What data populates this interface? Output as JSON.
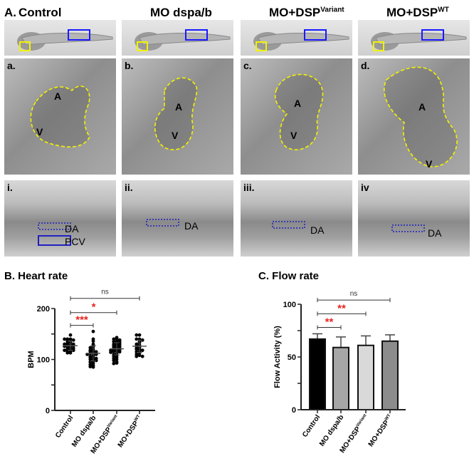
{
  "figure_label": "A.",
  "columns": [
    {
      "title": "Control",
      "sup": "",
      "heart_label": "a.",
      "vessel_label": "i.",
      "vessel_tags": [
        "DA",
        "PCV"
      ]
    },
    {
      "title": "MO dspa/b",
      "sup": "",
      "heart_label": "b.",
      "vessel_label": "ii.",
      "vessel_tags": [
        "DA"
      ]
    },
    {
      "title": "MO+DSP",
      "sup": "Variant",
      "heart_label": "c.",
      "vessel_label": "iii.",
      "vessel_tags": [
        "DA"
      ]
    },
    {
      "title": "MO+DSP",
      "sup": "WT",
      "heart_label": "d.",
      "vessel_label": "iv",
      "vessel_tags": [
        "DA"
      ]
    }
  ],
  "heart_tags": {
    "atrium": "A",
    "ventricle": "V"
  },
  "colors": {
    "box_blue": "#1a1aff",
    "box_yellow": "#f2f200",
    "sig_red": "#e8231f",
    "bar_fills": [
      "#000000",
      "#a6a6a6",
      "#d9d9d9",
      "#8c8c8c"
    ]
  },
  "chart_data": [
    {
      "type": "scatter",
      "title": "B. Heart rate",
      "ylabel": "BPM",
      "ylim": [
        0,
        200
      ],
      "yticks": [
        0,
        100,
        200
      ],
      "categories": [
        "Control",
        "MO dspa/b",
        "MO+DSP^Variant",
        "MO+DSP^WT"
      ],
      "cat_labels": [
        {
          "main": "Control",
          "sup": ""
        },
        {
          "main": "MO dspa/b",
          "sup": ""
        },
        {
          "main": "MO+DSP",
          "sup": "Variant"
        },
        {
          "main": "MO+DSP",
          "sup": "WT"
        }
      ],
      "means": [
        127,
        112,
        121,
        126
      ],
      "sd": [
        9,
        15,
        12,
        12
      ],
      "points": [
        [
          148,
          140,
          140,
          138,
          135,
          133,
          132,
          130,
          130,
          128,
          128,
          127,
          126,
          125,
          124,
          122,
          120,
          120,
          118,
          118,
          116,
          115,
          113,
          113,
          140,
          136
        ],
        [
          155,
          140,
          136,
          130,
          128,
          125,
          123,
          120,
          118,
          117,
          116,
          115,
          113,
          112,
          110,
          110,
          108,
          106,
          105,
          104,
          102,
          100,
          100,
          98,
          96,
          95,
          92,
          90,
          88,
          86,
          85
        ],
        [
          143,
          141,
          140,
          138,
          136,
          135,
          134,
          132,
          130,
          130,
          128,
          127,
          126,
          125,
          124,
          122,
          121,
          120,
          119,
          118,
          117,
          116,
          115,
          114,
          112,
          110,
          108,
          106,
          104,
          102,
          100,
          98,
          95,
          93,
          92
        ],
        [
          148,
          148,
          140,
          140,
          138,
          135,
          133,
          130,
          128,
          126,
          124,
          122,
          120,
          120,
          118,
          116,
          115,
          113,
          110,
          108,
          106,
          106
        ]
      ],
      "comparisons": [
        {
          "from": 0,
          "to": 1,
          "label": "***",
          "significant": true,
          "y": 167
        },
        {
          "from": 0,
          "to": 2,
          "label": "*",
          "significant": true,
          "y": 192
        },
        {
          "from": 0,
          "to": 3,
          "label": "ns",
          "significant": false,
          "y": 220
        }
      ]
    },
    {
      "type": "bar",
      "title": "C. Flow rate",
      "ylabel": "Flow Activity (%)",
      "ylim": [
        0,
        100
      ],
      "yticks": [
        0,
        50,
        100
      ],
      "categories": [
        "Control",
        "MO dspa/b",
        "MO+DSP^Variant",
        "MO+DSP^WT"
      ],
      "cat_labels": [
        {
          "main": "Control",
          "sup": ""
        },
        {
          "main": "MO dspa/b",
          "sup": ""
        },
        {
          "main": "MO+DSP",
          "sup": "Variant"
        },
        {
          "main": "MO+DSP",
          "sup": "WT"
        }
      ],
      "values": [
        67,
        59,
        61,
        65
      ],
      "errors": [
        5,
        10,
        9,
        6
      ],
      "comparisons": [
        {
          "from": 0,
          "to": 1,
          "label": "**",
          "significant": true,
          "y": 78
        },
        {
          "from": 0,
          "to": 2,
          "label": "**",
          "significant": true,
          "y": 91
        },
        {
          "from": 0,
          "to": 3,
          "label": "ns",
          "significant": false,
          "y": 104
        }
      ]
    }
  ]
}
